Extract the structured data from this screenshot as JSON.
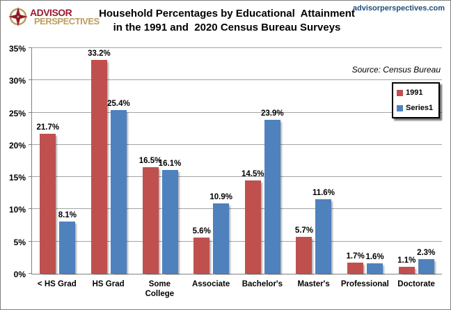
{
  "header": {
    "logo": {
      "line1": "ADVISOR",
      "line2": "PERSPECTIVES",
      "icon": "compass-rose",
      "color_primary": "#9a1b2f",
      "color_secondary": "#bc9d5e"
    },
    "title_line1": "Household Percentages by Educational  Attainment",
    "title_line2": "in the 1991 and  2020 Census Bureau Surveys",
    "website": "advisorperspectives.com",
    "website_color": "#1f4e79"
  },
  "chart": {
    "source_note": "Source:  Census Bureau",
    "legend_items": [
      {
        "label": "1991",
        "color": "#c0504d"
      },
      {
        "label": "Series1",
        "color": "#4f81bd"
      }
    ]
  },
  "chart_data": {
    "type": "bar",
    "title": "Household Percentages by Educational Attainment in the 1991 and 2020 Census Bureau Surveys",
    "categories": [
      "< HS Grad",
      "HS Grad",
      "Some College",
      "Associate",
      "Bachelor's",
      "Master's",
      "Professional",
      "Doctorate"
    ],
    "series": [
      {
        "name": "1991",
        "color": "#c0504d",
        "values": [
          21.7,
          33.2,
          16.5,
          5.6,
          14.5,
          5.7,
          1.7,
          1.1
        ]
      },
      {
        "name": "Series1",
        "color": "#4f81bd",
        "values": [
          8.1,
          25.4,
          16.1,
          10.9,
          23.9,
          11.6,
          1.6,
          2.3
        ]
      }
    ],
    "xlabel": "",
    "ylabel": "",
    "ylim": [
      0,
      35
    ],
    "ytick_step": 5,
    "ytick_suffix": "%",
    "grid": true,
    "legend_position": "right-top",
    "data_labels": true,
    "data_label_suffix": "%"
  },
  "colors": {
    "series_1991": "#c0504d",
    "series_blue": "#4f81bd",
    "gridline": "#a3a3a3",
    "axis": "#808080",
    "border": "#7f7f7f"
  }
}
